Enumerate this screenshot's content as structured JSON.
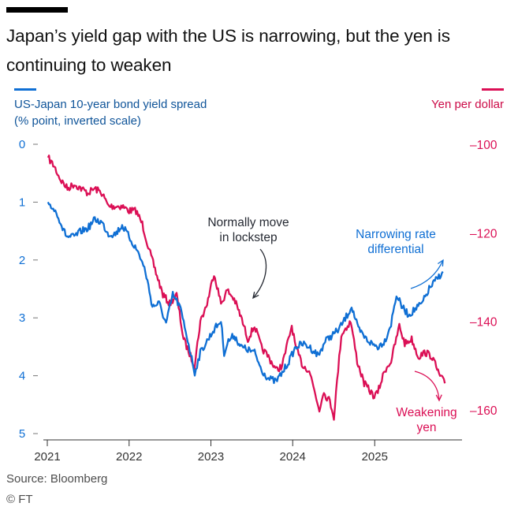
{
  "title": "Japan’s yield gap with the US is narrowing, but the yen is continuing to weaken",
  "source": "Source: Bloomberg",
  "credit": "© FT",
  "colors": {
    "spread": "#0f6fd4",
    "yen": "#db0f55",
    "text": "#262a33",
    "axis": "#555555"
  },
  "chart_data": {
    "type": "line",
    "x_range": [
      "2021-01-01",
      "2025-12-01"
    ],
    "x_ticks": [
      "2021",
      "2022",
      "2023",
      "2024",
      "2025"
    ],
    "y_left": {
      "label_lines": [
        "US-Japan 10-year bond yield spread",
        "(% point, inverted scale)"
      ],
      "ylim": [
        0,
        5
      ],
      "inverted": true,
      "ticks": [
        "0",
        "1",
        "2",
        "3",
        "4",
        "5"
      ]
    },
    "y_right": {
      "label_lines": [
        "Yen per dollar"
      ],
      "ylim": [
        -100,
        -160
      ],
      "ticks": [
        "-100",
        "-120",
        "-140",
        "-160"
      ]
    },
    "series": [
      {
        "name": "US-Japan 10-year bond yield spread",
        "axis": "left",
        "points": [
          [
            "2021-01-04",
            1.0
          ],
          [
            "2021-02-15",
            1.2
          ],
          [
            "2021-03-15",
            1.5
          ],
          [
            "2021-04-01",
            1.6
          ],
          [
            "2021-05-01",
            1.6
          ],
          [
            "2021-06-01",
            1.5
          ],
          [
            "2021-07-01",
            1.45
          ],
          [
            "2021-08-01",
            1.3
          ],
          [
            "2021-09-01",
            1.35
          ],
          [
            "2021-10-01",
            1.55
          ],
          [
            "2021-11-01",
            1.55
          ],
          [
            "2021-12-01",
            1.4
          ],
          [
            "2022-01-01",
            1.6
          ],
          [
            "2022-02-15",
            1.9
          ],
          [
            "2022-03-15",
            2.2
          ],
          [
            "2022-04-15",
            2.8
          ],
          [
            "2022-05-15",
            2.75
          ],
          [
            "2022-06-15",
            3.1
          ],
          [
            "2022-07-15",
            2.6
          ],
          [
            "2022-08-15",
            2.8
          ],
          [
            "2022-09-15",
            3.3
          ],
          [
            "2022-10-21",
            3.95
          ],
          [
            "2022-11-15",
            3.6
          ],
          [
            "2022-12-15",
            3.4
          ],
          [
            "2023-01-15",
            3.2
          ],
          [
            "2023-02-15",
            3.05
          ],
          [
            "2023-03-01",
            3.6
          ],
          [
            "2023-03-20",
            3.4
          ],
          [
            "2023-04-15",
            3.3
          ],
          [
            "2023-05-15",
            3.5
          ],
          [
            "2023-06-15",
            3.55
          ],
          [
            "2023-07-15",
            3.6
          ],
          [
            "2023-08-15",
            3.9
          ],
          [
            "2023-09-15",
            4.05
          ],
          [
            "2023-10-19",
            4.1
          ],
          [
            "2023-11-15",
            3.95
          ],
          [
            "2023-12-15",
            3.75
          ],
          [
            "2024-01-15",
            3.5
          ],
          [
            "2024-02-15",
            3.45
          ],
          [
            "2024-03-15",
            3.5
          ],
          [
            "2024-04-25",
            3.65
          ],
          [
            "2024-05-25",
            3.4
          ],
          [
            "2024-06-25",
            3.3
          ],
          [
            "2024-07-25",
            3.2
          ],
          [
            "2024-09-01",
            2.95
          ],
          [
            "2024-09-20",
            2.8
          ],
          [
            "2024-10-20",
            3.2
          ],
          [
            "2024-11-20",
            3.35
          ],
          [
            "2024-12-20",
            3.45
          ],
          [
            "2025-01-15",
            3.5
          ],
          [
            "2025-02-15",
            3.4
          ],
          [
            "2025-03-15",
            3.1
          ],
          [
            "2025-04-08",
            2.6
          ],
          [
            "2025-05-01",
            2.8
          ],
          [
            "2025-06-01",
            2.95
          ],
          [
            "2025-07-01",
            2.85
          ],
          [
            "2025-08-01",
            2.75
          ],
          [
            "2025-09-01",
            2.5
          ],
          [
            "2025-10-01",
            2.35
          ],
          [
            "2025-11-01",
            2.2
          ]
        ]
      },
      {
        "name": "Yen per dollar",
        "axis": "right",
        "points": [
          [
            "2021-01-04",
            -103
          ],
          [
            "2021-02-01",
            -105
          ],
          [
            "2021-03-01",
            -108
          ],
          [
            "2021-04-01",
            -110
          ],
          [
            "2021-05-01",
            -109
          ],
          [
            "2021-06-01",
            -110
          ],
          [
            "2021-07-01",
            -111
          ],
          [
            "2021-08-01",
            -110
          ],
          [
            "2021-09-01",
            -111
          ],
          [
            "2021-10-01",
            -114
          ],
          [
            "2021-11-01",
            -114
          ],
          [
            "2021-12-01",
            -114
          ],
          [
            "2022-01-01",
            -115
          ],
          [
            "2022-02-01",
            -115
          ],
          [
            "2022-03-01",
            -118
          ],
          [
            "2022-04-01",
            -124
          ],
          [
            "2022-05-01",
            -129
          ],
          [
            "2022-06-01",
            -134
          ],
          [
            "2022-07-01",
            -136
          ],
          [
            "2022-08-01",
            -134
          ],
          [
            "2022-09-01",
            -144
          ],
          [
            "2022-10-20",
            -150
          ],
          [
            "2022-11-15",
            -140
          ],
          [
            "2022-12-15",
            -136
          ],
          [
            "2023-01-15",
            -129
          ],
          [
            "2023-02-15",
            -136
          ],
          [
            "2023-03-15",
            -133
          ],
          [
            "2023-04-15",
            -135
          ],
          [
            "2023-05-15",
            -139
          ],
          [
            "2023-06-15",
            -144
          ],
          [
            "2023-07-15",
            -141
          ],
          [
            "2023-08-15",
            -146
          ],
          [
            "2023-09-15",
            -148
          ],
          [
            "2023-10-20",
            -151
          ],
          [
            "2023-11-15",
            -150
          ],
          [
            "2023-12-28",
            -141
          ],
          [
            "2024-01-15",
            -146
          ],
          [
            "2024-02-15",
            -150
          ],
          [
            "2024-03-15",
            -151
          ],
          [
            "2024-04-29",
            -160
          ],
          [
            "2024-05-15",
            -156
          ],
          [
            "2024-06-15",
            -158
          ],
          [
            "2024-07-03",
            -161.5
          ],
          [
            "2024-08-05",
            -143
          ],
          [
            "2024-09-16",
            -140
          ],
          [
            "2024-10-15",
            -149
          ],
          [
            "2024-11-15",
            -154
          ],
          [
            "2024-12-30",
            -157
          ],
          [
            "2025-01-15",
            -156
          ],
          [
            "2025-02-15",
            -151
          ],
          [
            "2025-03-15",
            -149
          ],
          [
            "2025-04-21",
            -141
          ],
          [
            "2025-05-15",
            -145
          ],
          [
            "2025-06-15",
            -144
          ],
          [
            "2025-07-15",
            -148
          ],
          [
            "2025-08-15",
            -147
          ],
          [
            "2025-09-15",
            -148
          ],
          [
            "2025-10-15",
            -152
          ],
          [
            "2025-11-10",
            -154
          ]
        ]
      }
    ],
    "annotations": [
      {
        "lines": [
          "Normally move",
          "in lockstep"
        ],
        "color": "#262a33"
      },
      {
        "lines": [
          "Narrowing rate",
          "differential"
        ],
        "color": "#0f6fd4"
      },
      {
        "lines": [
          "Weakening",
          "yen"
        ],
        "color": "#db0f55"
      }
    ]
  }
}
